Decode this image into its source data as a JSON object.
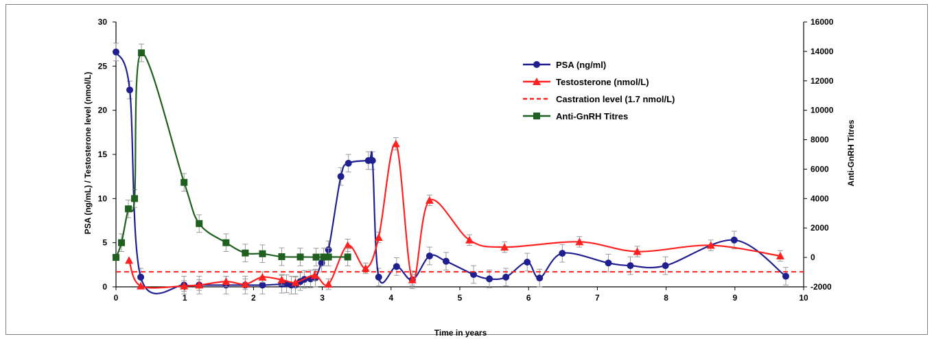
{
  "chart_data": {
    "type": "line",
    "xlabel": "Time in years",
    "ylabel_left": "PSA (ng/mL) / Testosterone level (nmol/L)",
    "ylabel_right": "Anti-GnRH Titres",
    "xlim": [
      0,
      10
    ],
    "ylim_left": [
      0,
      30
    ],
    "ylim_right": [
      -2000,
      16000
    ],
    "x_ticks": [
      0,
      1,
      2,
      3,
      4,
      5,
      6,
      7,
      8,
      9,
      10
    ],
    "y_left_ticks": [
      0,
      5,
      10,
      15,
      20,
      25,
      30
    ],
    "y_right_ticks": [
      -2000,
      0,
      2000,
      4000,
      6000,
      8000,
      10000,
      12000,
      14000,
      16000
    ],
    "legend_position": "top-right",
    "grid": false,
    "series": [
      {
        "name": "PSA (ng/ml)",
        "axis": "left",
        "color": "#1f1f8f",
        "marker": "circle",
        "line": "solid",
        "points": [
          [
            0,
            26.6,
            1.0
          ],
          [
            0.2,
            22.3,
            1.0
          ],
          [
            0.36,
            1.1,
            1.0
          ],
          [
            0.99,
            0.2,
            1.0
          ],
          [
            1.21,
            0.2,
            1.0
          ],
          [
            1.6,
            0.2,
            1.0
          ],
          [
            1.88,
            0.2,
            1.0
          ],
          [
            2.13,
            0.2,
            1.0
          ],
          [
            2.41,
            0.3,
            1.0
          ],
          [
            2.48,
            0.35,
            1.0
          ],
          [
            2.55,
            0.2,
            1.0
          ],
          [
            2.61,
            0.2,
            1.0
          ],
          [
            2.68,
            0.6,
            1.0
          ],
          [
            2.74,
            0.85,
            1.0
          ],
          [
            2.83,
            0.9,
            1.0
          ],
          [
            2.9,
            1.0,
            1.0
          ],
          [
            2.99,
            2.7,
            1.0
          ],
          [
            3.09,
            4.2,
            1.0
          ],
          [
            3.27,
            12.5,
            1.0
          ],
          [
            3.38,
            14.0,
            1.0
          ],
          [
            3.67,
            14.3,
            1.0
          ],
          [
            3.73,
            14.3,
            1.0
          ],
          [
            3.82,
            1.1,
            1.0
          ],
          [
            4.08,
            2.3,
            1.0
          ],
          [
            4.31,
            0.8,
            1.0
          ],
          [
            4.56,
            3.5,
            1.0
          ],
          [
            4.8,
            2.9,
            1.0
          ],
          [
            5.2,
            1.4,
            1.0
          ],
          [
            5.43,
            0.9,
            1.0
          ],
          [
            5.67,
            1.1,
            1.0
          ],
          [
            5.98,
            2.8,
            1.0
          ],
          [
            6.16,
            1.0,
            1.0
          ],
          [
            6.49,
            3.8,
            1.0
          ],
          [
            7.16,
            2.7,
            1.0
          ],
          [
            7.48,
            2.4,
            1.0
          ],
          [
            7.99,
            2.4,
            1.0
          ],
          [
            8.99,
            5.3,
            1.0
          ],
          [
            9.74,
            1.2,
            1.0
          ]
        ]
      },
      {
        "name": "Testosterone (nmol/L)",
        "axis": "left",
        "color": "#ff2020",
        "marker": "triangle",
        "line": "solid",
        "points": [
          [
            0.19,
            3.0,
            0
          ],
          [
            0.36,
            0.1,
            0
          ],
          [
            0.99,
            0.1,
            0.6
          ],
          [
            1.21,
            0.2,
            0.6
          ],
          [
            1.6,
            0.6,
            0.6
          ],
          [
            1.88,
            0.3,
            0.6
          ],
          [
            2.13,
            1.1,
            0.6
          ],
          [
            2.41,
            0.8,
            0.6
          ],
          [
            2.61,
            0.5,
            0.6
          ],
          [
            2.89,
            1.3,
            0.6
          ],
          [
            3.09,
            0.3,
            0.6
          ],
          [
            3.37,
            4.7,
            0.7
          ],
          [
            3.63,
            2.1,
            0.6
          ],
          [
            3.82,
            5.6,
            0.6
          ],
          [
            4.07,
            16.2,
            0.7
          ],
          [
            4.31,
            0.8,
            0.6
          ],
          [
            4.56,
            9.8,
            0.6
          ],
          [
            5.14,
            5.3,
            0.6
          ],
          [
            5.65,
            4.5,
            0.6
          ],
          [
            6.74,
            5.1,
            0.6
          ],
          [
            7.58,
            4.0,
            0.6
          ],
          [
            8.65,
            4.7,
            0.6
          ],
          [
            9.66,
            3.5,
            0.6
          ]
        ]
      },
      {
        "name": "Castration level (1.7 nmol/L)",
        "axis": "left",
        "color": "#ff2020",
        "marker": "none",
        "line": "dashed",
        "points": [
          [
            0,
            1.7
          ],
          [
            10,
            1.7
          ]
        ]
      },
      {
        "name": "Anti-GnRH Titres",
        "axis": "right",
        "color": "#1f5f1f",
        "marker": "square",
        "line": "solid",
        "points": [
          [
            0,
            0,
            0
          ],
          [
            0.08,
            1000,
            600
          ],
          [
            0.18,
            3300,
            600
          ],
          [
            0.27,
            4000,
            600
          ],
          [
            0.37,
            13900,
            600
          ],
          [
            0.99,
            5100,
            600
          ],
          [
            1.21,
            2300,
            600
          ],
          [
            1.6,
            1000,
            600
          ],
          [
            1.88,
            300,
            600
          ],
          [
            2.13,
            250,
            600
          ],
          [
            2.41,
            50,
            600
          ],
          [
            2.68,
            30,
            600
          ],
          [
            2.91,
            20,
            600
          ],
          [
            3.02,
            30,
            600
          ],
          [
            3.09,
            30,
            600
          ],
          [
            3.37,
            30,
            600
          ]
        ]
      }
    ]
  }
}
